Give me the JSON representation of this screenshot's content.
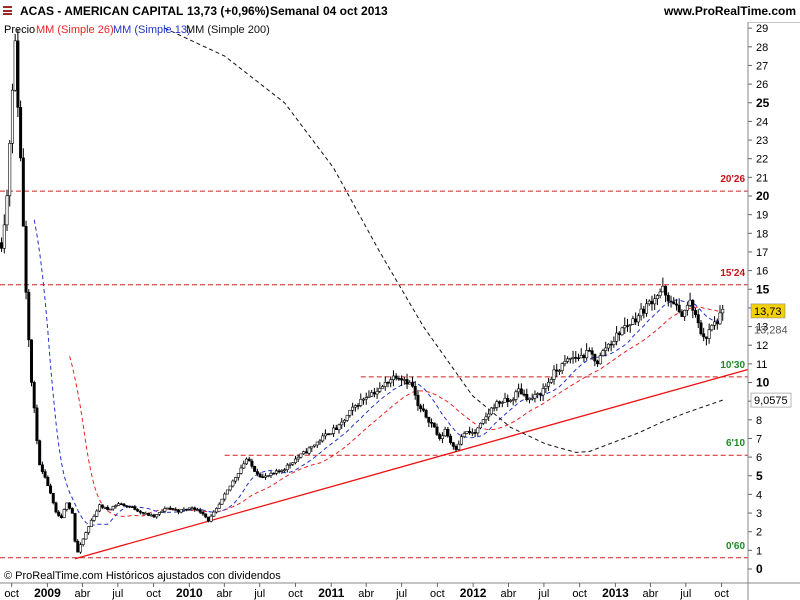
{
  "header": {
    "ticker": "ACAS - AMERICAN CAPITAL",
    "quote": "13,73 (+0,96%)",
    "period": "Semanal",
    "date": "04 oct 2013",
    "site": "www.ProRealTime.com"
  },
  "legend": {
    "price": "Precio",
    "ma26": "MM (Simple 26)",
    "ma13": "MM (Simple 13)",
    "ma200": "MM (Simple 200)"
  },
  "copyright": "© ProRealTime.com Históricos ajustados con dividendos",
  "colors": {
    "ma26": "#ee2222",
    "ma13": "#2233cc",
    "ma200": "#111111",
    "level_line": "#cc2222",
    "trendline": "#ee1111",
    "level_label_red": "#cc1111",
    "level_label_green": "#228822",
    "price_badge": "#f5d000"
  },
  "chart_data": {
    "type": "candlestick",
    "y_axis": {
      "position": "right",
      "ylim": [
        0,
        29
      ],
      "ticks": [
        0,
        1,
        2,
        3,
        4,
        5,
        6,
        7,
        8,
        9,
        10,
        11,
        12,
        13,
        14,
        15,
        16,
        17,
        18,
        19,
        20,
        21,
        22,
        23,
        24,
        25,
        26,
        27,
        28,
        29
      ],
      "bold_ticks": [
        0,
        5,
        10,
        15,
        20,
        25
      ]
    },
    "x_axis": {
      "range": [
        "2008-09-01",
        "2013-12-08"
      ],
      "ticks": [
        {
          "label": "oct",
          "date": "2008-10-01",
          "year": false
        },
        {
          "label": "2009",
          "date": "2009-01-01",
          "year": true
        },
        {
          "label": "abr",
          "date": "2009-04-01",
          "year": false
        },
        {
          "label": "jul",
          "date": "2009-07-01",
          "year": false
        },
        {
          "label": "oct",
          "date": "2009-10-01",
          "year": false
        },
        {
          "label": "2010",
          "date": "2010-01-01",
          "year": true
        },
        {
          "label": "abr",
          "date": "2010-04-01",
          "year": false
        },
        {
          "label": "jul",
          "date": "2010-07-01",
          "year": false
        },
        {
          "label": "oct",
          "date": "2010-10-01",
          "year": false
        },
        {
          "label": "2011",
          "date": "2011-01-01",
          "year": true
        },
        {
          "label": "abr",
          "date": "2011-04-01",
          "year": false
        },
        {
          "label": "jul",
          "date": "2011-07-01",
          "year": false
        },
        {
          "label": "oct",
          "date": "2011-10-01",
          "year": false
        },
        {
          "label": "2012",
          "date": "2012-01-01",
          "year": true
        },
        {
          "label": "abr",
          "date": "2012-04-01",
          "year": false
        },
        {
          "label": "jul",
          "date": "2012-07-01",
          "year": false
        },
        {
          "label": "oct",
          "date": "2012-10-01",
          "year": false
        },
        {
          "label": "2013",
          "date": "2013-01-01",
          "year": true
        },
        {
          "label": "abr",
          "date": "2013-04-01",
          "year": false
        },
        {
          "label": "jul",
          "date": "2013-07-01",
          "year": false
        },
        {
          "label": "oct",
          "date": "2013-10-01",
          "year": false
        }
      ]
    },
    "price_path": [
      [
        "2008-09-05",
        17.5
      ],
      [
        "2008-09-19",
        20.0
      ],
      [
        "2008-10-03",
        26.0
      ],
      [
        "2008-10-10",
        28.0
      ],
      [
        "2008-10-24",
        22.0
      ],
      [
        "2008-11-07",
        15.0
      ],
      [
        "2008-11-21",
        10.0
      ],
      [
        "2008-12-12",
        5.5
      ],
      [
        "2009-01-02",
        4.5
      ],
      [
        "2009-01-23",
        3.0
      ],
      [
        "2009-02-06",
        2.7
      ],
      [
        "2009-02-20",
        3.6
      ],
      [
        "2009-03-06",
        3.0
      ],
      [
        "2009-03-13",
        1.5
      ],
      [
        "2009-03-20",
        0.9
      ],
      [
        "2009-04-03",
        1.6
      ],
      [
        "2009-04-24",
        2.6
      ],
      [
        "2009-05-15",
        3.4
      ],
      [
        "2009-06-05",
        3.2
      ],
      [
        "2009-07-03",
        3.5
      ],
      [
        "2009-08-07",
        3.3
      ],
      [
        "2009-09-04",
        3.0
      ],
      [
        "2009-10-02",
        2.8
      ],
      [
        "2009-11-06",
        3.3
      ],
      [
        "2009-12-04",
        3.1
      ],
      [
        "2010-01-08",
        3.3
      ],
      [
        "2010-02-05",
        3.0
      ],
      [
        "2010-02-19",
        2.6
      ],
      [
        "2010-03-12",
        3.2
      ],
      [
        "2010-04-09",
        4.2
      ],
      [
        "2010-05-07",
        5.2
      ],
      [
        "2010-05-28",
        5.9
      ],
      [
        "2010-06-18",
        5.3
      ],
      [
        "2010-07-09",
        4.9
      ],
      [
        "2010-08-06",
        5.1
      ],
      [
        "2010-09-03",
        5.4
      ],
      [
        "2010-10-01",
        5.9
      ],
      [
        "2010-10-29",
        6.3
      ],
      [
        "2010-11-26",
        6.8
      ],
      [
        "2010-12-24",
        7.3
      ],
      [
        "2011-01-21",
        7.6
      ],
      [
        "2011-02-18",
        8.4
      ],
      [
        "2011-03-11",
        8.9
      ],
      [
        "2011-04-08",
        9.4
      ],
      [
        "2011-05-06",
        9.6
      ],
      [
        "2011-05-27",
        10.1
      ],
      [
        "2011-06-17",
        10.4
      ],
      [
        "2011-07-08",
        10.2
      ],
      [
        "2011-07-29",
        9.8
      ],
      [
        "2011-08-12",
        8.7
      ],
      [
        "2011-09-02",
        8.2
      ],
      [
        "2011-09-23",
        7.6
      ],
      [
        "2011-10-07",
        6.9
      ],
      [
        "2011-10-21",
        7.5
      ],
      [
        "2011-11-04",
        6.8
      ],
      [
        "2011-11-18",
        6.5
      ],
      [
        "2011-12-09",
        7.3
      ],
      [
        "2012-01-06",
        7.3
      ],
      [
        "2012-01-27",
        7.9
      ],
      [
        "2012-02-24",
        8.8
      ],
      [
        "2012-03-16",
        9.0
      ],
      [
        "2012-04-06",
        9.0
      ],
      [
        "2012-04-27",
        9.6
      ],
      [
        "2012-05-25",
        9.1
      ],
      [
        "2012-06-15",
        9.3
      ],
      [
        "2012-07-06",
        9.8
      ],
      [
        "2012-07-27",
        10.5
      ],
      [
        "2012-08-17",
        10.9
      ],
      [
        "2012-09-07",
        11.3
      ],
      [
        "2012-10-05",
        11.4
      ],
      [
        "2012-10-26",
        11.6
      ],
      [
        "2012-11-16",
        11.1
      ],
      [
        "2012-12-07",
        11.9
      ],
      [
        "2012-12-28",
        12.3
      ],
      [
        "2013-01-18",
        12.9
      ],
      [
        "2013-02-08",
        13.2
      ],
      [
        "2013-03-01",
        13.6
      ],
      [
        "2013-03-22",
        14.1
      ],
      [
        "2013-04-12",
        14.6
      ],
      [
        "2013-05-03",
        15.0
      ],
      [
        "2013-05-17",
        14.2
      ],
      [
        "2013-05-31",
        14.4
      ],
      [
        "2013-06-14",
        13.6
      ],
      [
        "2013-06-28",
        13.9
      ],
      [
        "2013-07-12",
        14.3
      ],
      [
        "2013-07-26",
        13.5
      ],
      [
        "2013-08-09",
        12.7
      ],
      [
        "2013-08-23",
        12.4
      ],
      [
        "2013-09-06",
        13.0
      ],
      [
        "2013-09-20",
        13.3
      ],
      [
        "2013-10-04",
        13.73
      ]
    ],
    "ma200_path": [
      [
        "2009-10-30",
        29.0
      ],
      [
        "2010-04-02",
        27.5
      ],
      [
        "2010-09-03",
        25.0
      ],
      [
        "2011-01-07",
        21.5
      ],
      [
        "2011-05-06",
        17.0
      ],
      [
        "2011-08-26",
        13.0
      ],
      [
        "2011-12-30",
        9.3
      ],
      [
        "2012-04-06",
        7.6
      ],
      [
        "2012-07-06",
        6.7
      ],
      [
        "2012-09-21",
        6.25
      ],
      [
        "2012-10-26",
        6.3
      ],
      [
        "2012-12-28",
        6.8
      ],
      [
        "2013-03-01",
        7.3
      ],
      [
        "2013-05-03",
        7.9
      ],
      [
        "2013-07-05",
        8.4
      ],
      [
        "2013-10-04",
        9.0575
      ]
    ],
    "horizontal_levels": [
      {
        "value": 20.26,
        "label": "20'26",
        "label_color": "red",
        "from": "2008-09-01"
      },
      {
        "value": 15.24,
        "label": "15'24",
        "label_color": "red",
        "from": "2008-09-01"
      },
      {
        "value": 10.3,
        "label": "10'30",
        "label_color": "green",
        "from": "2011-03-18"
      },
      {
        "value": 6.1,
        "label": "6'10",
        "label_color": "green",
        "from": "2010-04-02"
      },
      {
        "value": 0.6,
        "label": "0'60",
        "label_color": "green",
        "from": "2008-09-01"
      }
    ],
    "trendline": {
      "from": [
        "2009-03-13",
        0.55
      ],
      "to": [
        "2013-12-08",
        10.7
      ]
    },
    "value_badges": [
      {
        "label": "13,73",
        "value": 13.73,
        "style": "yellow"
      },
      {
        "label": "13,284",
        "value": 13.284,
        "style": "plain"
      },
      {
        "label": "9,0575",
        "value": 9.0575,
        "style": "white"
      }
    ]
  }
}
